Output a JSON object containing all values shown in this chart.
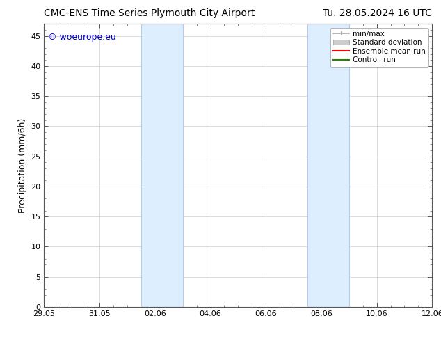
{
  "title_left": "CMC-ENS Time Series Plymouth City Airport",
  "title_right": "Tu. 28.05.2024 16 UTC",
  "ylabel": "Precipitation (mm/6h)",
  "watermark": "© woeurope.eu",
  "watermark_color": "#0000cc",
  "ylim": [
    0,
    47
  ],
  "yticks": [
    0,
    5,
    10,
    15,
    20,
    25,
    30,
    35,
    40,
    45
  ],
  "xtick_labels": [
    "29.05",
    "31.05",
    "02.06",
    "04.06",
    "06.06",
    "08.06",
    "10.06",
    "12.06"
  ],
  "xtick_positions": [
    0,
    2,
    4,
    6,
    8,
    10,
    12,
    14
  ],
  "xlim": [
    0,
    14
  ],
  "shaded_regions": [
    {
      "start": 3.5,
      "end": 5.0
    },
    {
      "start": 9.5,
      "end": 11.0
    }
  ],
  "shaded_color": "#ddeeff",
  "shaded_edge_color": "#b0ccee",
  "bg_color": "#ffffff",
  "grid_color": "#cccccc",
  "title_fontsize": 10,
  "axis_label_fontsize": 9,
  "tick_fontsize": 8,
  "watermark_fontsize": 9,
  "legend_fontsize": 7.5,
  "minmax_color": "#aaaaaa",
  "stddev_color": "#cccccc",
  "ensemble_color": "#ff0000",
  "control_color": "#228800"
}
